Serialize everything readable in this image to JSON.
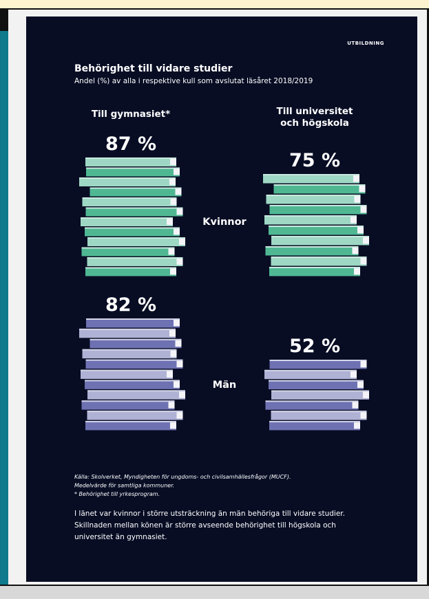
{
  "chart_data": {
    "type": "pictograph",
    "kicker": "UTBILDNING",
    "title": "Behörighet till vidare studier",
    "subtitle": "Andel (%) av alla i respektive kull som avslutat läsåret 2018/2019",
    "categories": [
      "Kvinnor",
      "Män"
    ],
    "category_colors": [
      "#4fb893",
      "#6e72b3"
    ],
    "series": [
      {
        "name": "Till gymnasiet*",
        "values": [
          87,
          82
        ],
        "value_labels": [
          "87 %",
          "82 %"
        ]
      },
      {
        "name": "Till universitet\noch högskola",
        "values": [
          75,
          52
        ],
        "value_labels": [
          "75 %",
          "52 %"
        ]
      }
    ],
    "source": [
      "Källa: Skolverket, Myndigheten för ungdoms- och civilsamhällesfrågor (MUCF).",
      "Medelvärde för samtliga kommuner.",
      "* Behörighet till yrkesprogram."
    ],
    "text": [
      "I länet var kvinnor i större utsträckning än män behöriga till vidare studier.",
      "Skillnaden mellan könen är större avseende behörighet till högskola och",
      "universitet än gymnasiet."
    ]
  }
}
